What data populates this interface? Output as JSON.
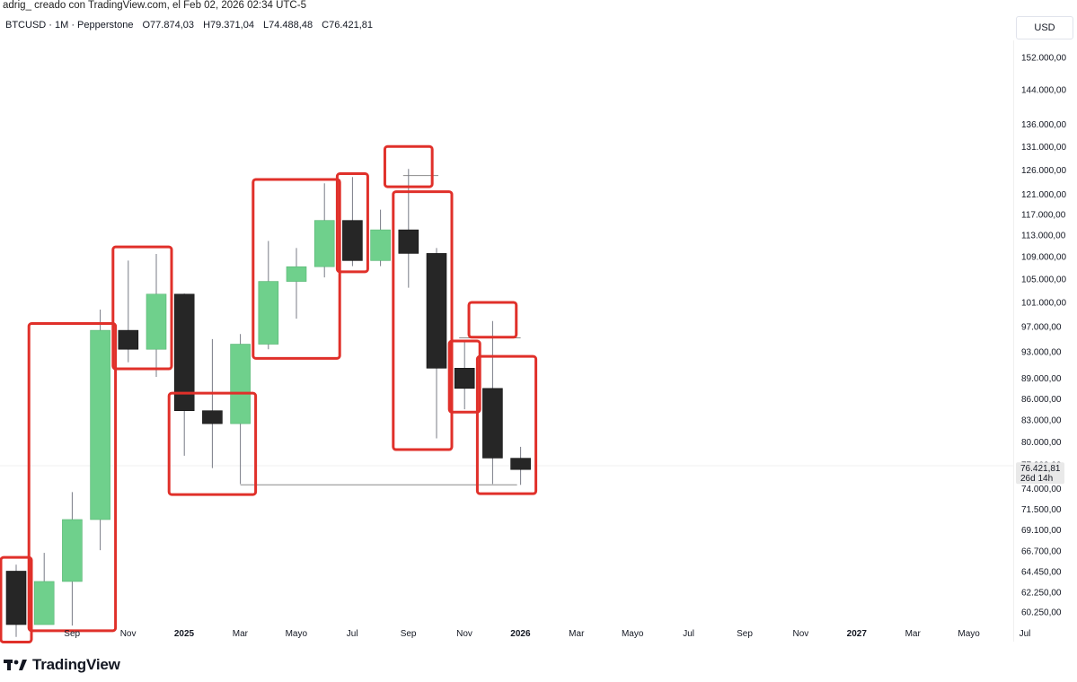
{
  "header": {
    "credit": "adrig_ creado con TradingView.com, el Feb 02, 2026 02:34 UTC-5",
    "symbol": "BTCUSD · 1M · Pepperstone",
    "open": "O77.874,03",
    "high": "H79.371,04",
    "low": "L74.488,48",
    "close": "C76.421,81"
  },
  "currency_button": "USD",
  "brand": {
    "name": "TradingView",
    "logo_icon": "tradingview-logo-icon"
  },
  "price_badge": {
    "price": "76.421,81",
    "countdown": "26d 14h",
    "covered_tick": "77.000,00"
  },
  "colors": {
    "up": "#6fd08c",
    "down": "#262626",
    "highlight": "#e0302a",
    "wick": "#787b86"
  },
  "chart_data": {
    "type": "candlestick",
    "interval": "1M",
    "scale": "log",
    "y_ticks": [
      {
        "v": 152000,
        "label": "152.000,00"
      },
      {
        "v": 144000,
        "label": "144.000,00"
      },
      {
        "v": 136000,
        "label": "136.000,00"
      },
      {
        "v": 131000,
        "label": "131.000,00"
      },
      {
        "v": 126000,
        "label": "126.000,00"
      },
      {
        "v": 121000,
        "label": "121.000,00"
      },
      {
        "v": 117000,
        "label": "117.000,00"
      },
      {
        "v": 113000,
        "label": "113.000,00"
      },
      {
        "v": 109000,
        "label": "109.000,00"
      },
      {
        "v": 105000,
        "label": "105.000,00"
      },
      {
        "v": 101000,
        "label": "101.000,00"
      },
      {
        "v": 97000,
        "label": "97.000,00"
      },
      {
        "v": 93000,
        "label": "93.000,00"
      },
      {
        "v": 89000,
        "label": "89.000,00"
      },
      {
        "v": 86000,
        "label": "86.000,00"
      },
      {
        "v": 83000,
        "label": "83.000,00"
      },
      {
        "v": 80000,
        "label": "80.000,00"
      },
      {
        "v": 74000,
        "label": "74.000,00"
      },
      {
        "v": 71500,
        "label": "71.500,00"
      },
      {
        "v": 69100,
        "label": "69.100,00"
      },
      {
        "v": 66700,
        "label": "66.700,00"
      },
      {
        "v": 64450,
        "label": "64.450,00"
      },
      {
        "v": 62250,
        "label": "62.250,00"
      },
      {
        "v": 60250,
        "label": "60.250,00"
      }
    ],
    "x_labels": [
      {
        "label": "Sep",
        "bold": false
      },
      {
        "label": "Nov",
        "bold": false
      },
      {
        "label": "2025",
        "bold": true
      },
      {
        "label": "Mar",
        "bold": false
      },
      {
        "label": "Mayo",
        "bold": false
      },
      {
        "label": "Jul",
        "bold": false
      },
      {
        "label": "Sep",
        "bold": false
      },
      {
        "label": "Nov",
        "bold": false
      },
      {
        "label": "2026",
        "bold": true
      },
      {
        "label": "Mar",
        "bold": false
      },
      {
        "label": "Mayo",
        "bold": false
      },
      {
        "label": "Jul",
        "bold": false
      },
      {
        "label": "Sep",
        "bold": false
      },
      {
        "label": "Nov",
        "bold": false
      },
      {
        "label": "2027",
        "bold": true
      },
      {
        "label": "Mar",
        "bold": false
      },
      {
        "label": "Mayo",
        "bold": false
      },
      {
        "label": "Jul",
        "bold": false
      }
    ],
    "candles": [
      {
        "month": "2024-08",
        "o": 64500,
        "h": 65200,
        "l": 57800,
        "c": 59000
      },
      {
        "month": "2024-09",
        "o": 59000,
        "h": 66500,
        "l": 59000,
        "c": 63400
      },
      {
        "month": "2024-10",
        "o": 63400,
        "h": 73600,
        "l": 58900,
        "c": 70300
      },
      {
        "month": "2024-11",
        "o": 70300,
        "h": 99800,
        "l": 66800,
        "c": 96400
      },
      {
        "month": "2024-12",
        "o": 96400,
        "h": 108300,
        "l": 91400,
        "c": 93400
      },
      {
        "month": "2025-01",
        "o": 93400,
        "h": 109500,
        "l": 89200,
        "c": 102400
      },
      {
        "month": "2025-02",
        "o": 102400,
        "h": 102500,
        "l": 78200,
        "c": 84300
      },
      {
        "month": "2025-03",
        "o": 84300,
        "h": 95000,
        "l": 76600,
        "c": 82500
      },
      {
        "month": "2025-04",
        "o": 82500,
        "h": 95800,
        "l": 74600,
        "c": 94200
      },
      {
        "month": "2025-05",
        "o": 94200,
        "h": 111900,
        "l": 93400,
        "c": 104600
      },
      {
        "month": "2025-06",
        "o": 104600,
        "h": 110600,
        "l": 98300,
        "c": 107200
      },
      {
        "month": "2025-07",
        "o": 107200,
        "h": 123200,
        "l": 105300,
        "c": 115800
      },
      {
        "month": "2025-08",
        "o": 115800,
        "h": 124500,
        "l": 107300,
        "c": 108300
      },
      {
        "month": "2025-09",
        "o": 108300,
        "h": 117900,
        "l": 107300,
        "c": 114000
      },
      {
        "month": "2025-10",
        "o": 114000,
        "h": 126200,
        "l": 103500,
        "c": 109600
      },
      {
        "month": "2025-11",
        "o": 109600,
        "h": 110600,
        "l": 80500,
        "c": 90500
      },
      {
        "month": "2025-12",
        "o": 90500,
        "h": 94500,
        "l": 84500,
        "c": 87500
      },
      {
        "month": "2026-01",
        "o": 87500,
        "h": 97900,
        "l": 74600,
        "c": 77900
      },
      {
        "month": "2026-02",
        "o": 77874.03,
        "h": 79371.04,
        "l": 74488.48,
        "c": 76421.81
      }
    ],
    "support_level": 74500
  }
}
